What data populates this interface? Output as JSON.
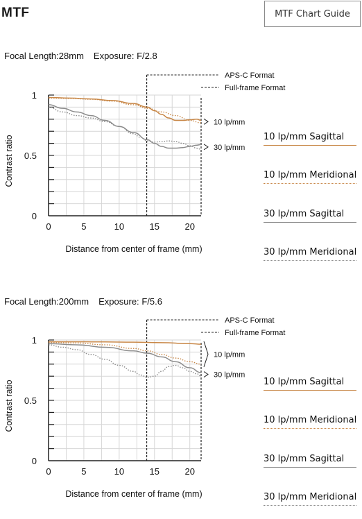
{
  "page": {
    "title": "MTF",
    "guide_button": "MTF Chart Guide"
  },
  "colors": {
    "orange": "#c88747",
    "gray": "#8c8c8c",
    "grid": "#d6d6d6"
  },
  "legend": [
    {
      "label": "10 lp/mm Sagittal",
      "color": "#c88747",
      "style": "solid"
    },
    {
      "label": "10 lp/mm Meridional",
      "color": "#c88747",
      "style": "dotted"
    },
    {
      "label": "30 lp/mm Sagittal",
      "color": "#8c8c8c",
      "style": "solid"
    },
    {
      "label": "30 lp/mm Meridional",
      "color": "#8c8c8c",
      "style": "dotted"
    }
  ],
  "chart_data": [
    {
      "type": "line",
      "focal_label": "Focal Length:",
      "focal_value": "28mm",
      "exposure_label": "Exposure:",
      "exposure_value": "F/2.8",
      "xlabel": "Distance from center of frame (mm)",
      "ylabel": "Contrast ratio",
      "xlim": [
        0,
        21.6
      ],
      "ylim": [
        0,
        1
      ],
      "xticks": [
        0,
        5,
        10,
        15,
        20
      ],
      "yticks": [
        {
          "v": 0,
          "t": "0"
        },
        {
          "v": 0.5,
          "t": "0.5"
        },
        {
          "v": 1,
          "t": "1"
        }
      ],
      "grid": true,
      "aps_c_x": 13.9,
      "aps_c_label": "APS-C Format",
      "full_frame_label": "Full-frame Format",
      "bracket_10": "10 lp/mm",
      "bracket_30": "30 lp/mm",
      "series": [
        {
          "name": "10 lp/mm Sagittal",
          "color": "#c88747",
          "style": "solid",
          "x": [
            0,
            3,
            6,
            9,
            12,
            14,
            15,
            16,
            17,
            18,
            19,
            20,
            21,
            21.6
          ],
          "y": [
            0.98,
            0.975,
            0.968,
            0.955,
            0.93,
            0.9,
            0.87,
            0.84,
            0.81,
            0.79,
            0.79,
            0.795,
            0.8,
            0.79
          ]
        },
        {
          "name": "10 lp/mm Meridional",
          "color": "#c88747",
          "style": "dotted",
          "x": [
            0,
            3,
            6,
            9,
            12,
            14,
            16,
            18,
            20,
            21.6
          ],
          "y": [
            0.975,
            0.972,
            0.965,
            0.95,
            0.92,
            0.89,
            0.86,
            0.83,
            0.79,
            0.77
          ]
        },
        {
          "name": "30 lp/mm Sagittal",
          "color": "#8c8c8c",
          "style": "solid",
          "x": [
            0,
            2,
            4,
            6,
            8,
            10,
            12,
            14,
            15,
            16,
            17,
            18,
            19,
            20,
            21,
            21.6
          ],
          "y": [
            0.92,
            0.89,
            0.86,
            0.83,
            0.79,
            0.74,
            0.69,
            0.63,
            0.6,
            0.575,
            0.56,
            0.56,
            0.565,
            0.575,
            0.585,
            0.59
          ]
        },
        {
          "name": "30 lp/mm Meridional",
          "color": "#8c8c8c",
          "style": "dotted",
          "x": [
            0,
            2,
            4,
            6,
            8,
            10,
            12,
            13,
            14,
            15,
            16,
            17,
            18,
            19,
            20,
            21,
            21.6
          ],
          "y": [
            0.9,
            0.86,
            0.83,
            0.81,
            0.78,
            0.74,
            0.68,
            0.65,
            0.62,
            0.61,
            0.615,
            0.62,
            0.615,
            0.6,
            0.58,
            0.56,
            0.55
          ]
        }
      ]
    },
    {
      "type": "line",
      "focal_label": "Focal Length:",
      "focal_value": "200mm",
      "exposure_label": "Exposure:",
      "exposure_value": "F/5.6",
      "xlabel": "Distance from center of frame (mm)",
      "ylabel": "Contrast ratio",
      "xlim": [
        0,
        21.6
      ],
      "ylim": [
        0,
        1
      ],
      "xticks": [
        0,
        5,
        10,
        15,
        20
      ],
      "yticks": [
        {
          "v": 0,
          "t": "0"
        },
        {
          "v": 0.5,
          "t": "0.5"
        },
        {
          "v": 1,
          "t": "1"
        }
      ],
      "grid": true,
      "aps_c_x": 13.9,
      "aps_c_label": "APS-C Format",
      "full_frame_label": "Full-frame Format",
      "bracket_10": "10 lp/mm",
      "bracket_30": "30 lp/mm",
      "series": [
        {
          "name": "10 lp/mm Sagittal",
          "color": "#c88747",
          "style": "solid",
          "x": [
            0,
            4,
            8,
            12,
            16,
            20,
            21.6
          ],
          "y": [
            0.985,
            0.985,
            0.984,
            0.982,
            0.978,
            0.97,
            0.965
          ]
        },
        {
          "name": "10 lp/mm Meridional",
          "color": "#c88747",
          "style": "dotted",
          "x": [
            0,
            4,
            8,
            12,
            14,
            16,
            18,
            20,
            21.6
          ],
          "y": [
            0.98,
            0.975,
            0.96,
            0.93,
            0.91,
            0.88,
            0.85,
            0.82,
            0.8
          ]
        },
        {
          "name": "30 lp/mm Sagittal",
          "color": "#8c8c8c",
          "style": "solid",
          "x": [
            0,
            4,
            8,
            12,
            14,
            16,
            18,
            20,
            21.6
          ],
          "y": [
            0.97,
            0.96,
            0.94,
            0.91,
            0.89,
            0.86,
            0.82,
            0.77,
            0.73
          ]
        },
        {
          "name": "30 lp/mm Meridional",
          "color": "#8c8c8c",
          "style": "dotted",
          "x": [
            0,
            2,
            4,
            6,
            8,
            10,
            12,
            13,
            14,
            15,
            16,
            17,
            18,
            19,
            20,
            21,
            21.6
          ],
          "y": [
            0.96,
            0.94,
            0.92,
            0.88,
            0.84,
            0.79,
            0.74,
            0.71,
            0.69,
            0.7,
            0.74,
            0.78,
            0.79,
            0.77,
            0.74,
            0.72,
            0.7
          ]
        }
      ]
    }
  ]
}
